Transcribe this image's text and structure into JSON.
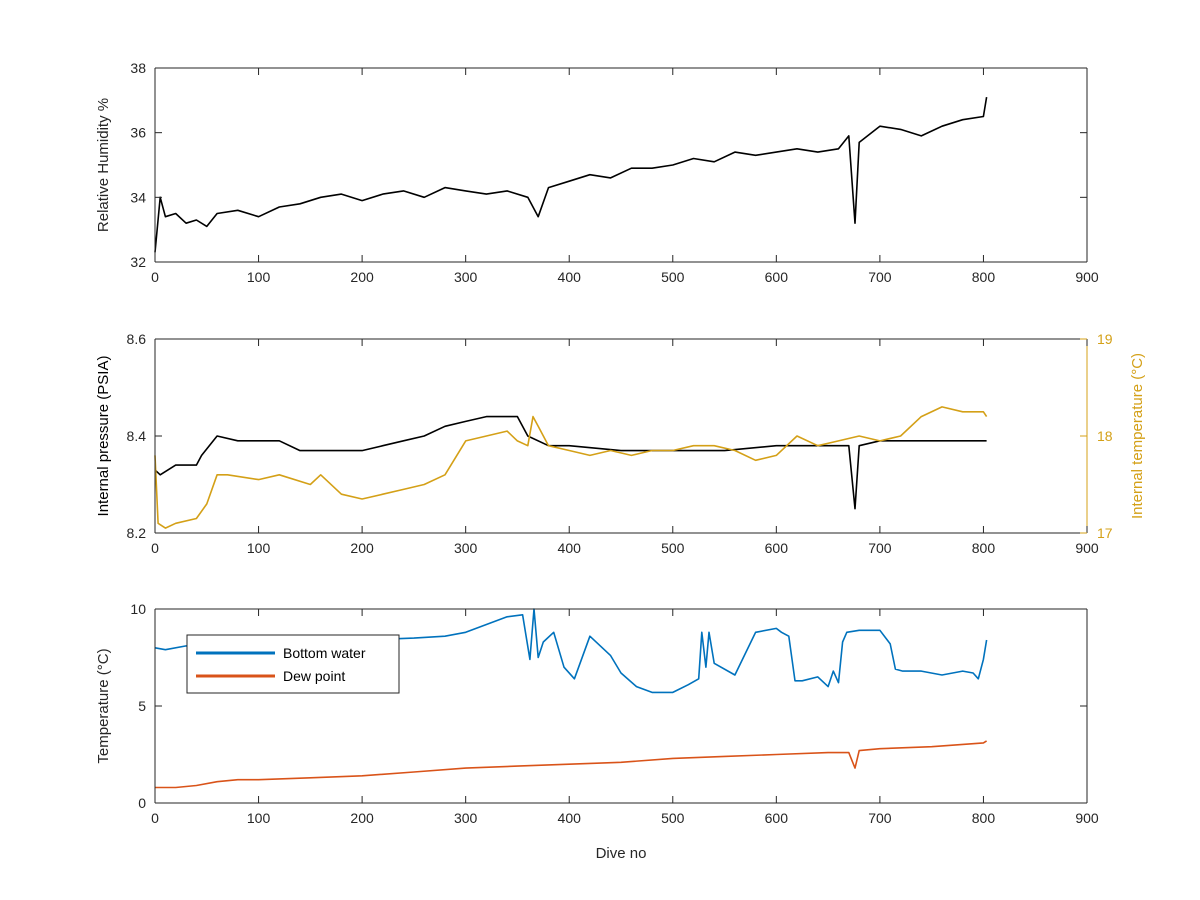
{
  "chart_data": [
    {
      "type": "line",
      "id": "humidity",
      "xlabel": "",
      "ylabel": "Relative Humidity %",
      "xlim": [
        0,
        900
      ],
      "ylim": [
        32,
        38
      ],
      "xticks": [
        0,
        100,
        200,
        300,
        400,
        500,
        600,
        700,
        800,
        900
      ],
      "yticks": [
        32,
        34,
        36,
        38
      ],
      "grid": false,
      "series": [
        {
          "color": "#000000",
          "x": [
            0,
            5,
            10,
            20,
            30,
            40,
            50,
            60,
            80,
            100,
            120,
            140,
            160,
            180,
            200,
            220,
            240,
            260,
            280,
            300,
            320,
            340,
            360,
            370,
            380,
            400,
            420,
            440,
            460,
            480,
            500,
            520,
            540,
            560,
            580,
            600,
            620,
            640,
            660,
            670,
            676,
            680,
            700,
            720,
            740,
            760,
            780,
            800,
            803
          ],
          "y": [
            32.3,
            34.0,
            33.4,
            33.5,
            33.2,
            33.3,
            33.1,
            33.5,
            33.6,
            33.4,
            33.7,
            33.8,
            34.0,
            34.1,
            33.9,
            34.1,
            34.2,
            34.0,
            34.3,
            34.2,
            34.1,
            34.2,
            34.0,
            33.4,
            34.3,
            34.5,
            34.7,
            34.6,
            34.9,
            34.9,
            35.0,
            35.2,
            35.1,
            35.4,
            35.3,
            35.4,
            35.5,
            35.4,
            35.5,
            35.9,
            33.2,
            35.7,
            36.2,
            36.1,
            35.9,
            36.2,
            36.4,
            36.5,
            37.1
          ]
        }
      ]
    },
    {
      "type": "line",
      "id": "pressure-temperature",
      "xlabel": "",
      "ylabel": "Internal pressure (PSIA)",
      "ylabel_right": "Internal temperature (°C)",
      "xlim": [
        0,
        900
      ],
      "ylim": [
        8.2,
        8.6
      ],
      "ylim_right": [
        17,
        19
      ],
      "xticks": [
        0,
        100,
        200,
        300,
        400,
        500,
        600,
        700,
        800,
        900
      ],
      "yticks": [
        "8.2",
        "8.4",
        "8.6"
      ],
      "yticks_right": [
        17,
        18,
        19
      ],
      "grid": false,
      "series": [
        {
          "axis": "left",
          "color": "#000000",
          "x": [
            0,
            5,
            20,
            40,
            45,
            60,
            80,
            100,
            120,
            140,
            160,
            180,
            200,
            220,
            240,
            260,
            280,
            300,
            320,
            340,
            350,
            360,
            380,
            400,
            450,
            500,
            550,
            600,
            650,
            670,
            676,
            680,
            700,
            750,
            800,
            803
          ],
          "y": [
            8.33,
            8.32,
            8.34,
            8.34,
            8.36,
            8.4,
            8.39,
            8.39,
            8.39,
            8.37,
            8.37,
            8.37,
            8.37,
            8.38,
            8.39,
            8.4,
            8.42,
            8.43,
            8.44,
            8.44,
            8.44,
            8.4,
            8.38,
            8.38,
            8.37,
            8.37,
            8.37,
            8.38,
            8.38,
            8.38,
            8.25,
            8.38,
            8.39,
            8.39,
            8.39,
            8.39
          ]
        },
        {
          "axis": "right",
          "color": "#D4A017",
          "x": [
            0,
            3,
            10,
            20,
            40,
            50,
            60,
            70,
            100,
            120,
            150,
            160,
            180,
            200,
            220,
            240,
            260,
            280,
            300,
            320,
            340,
            350,
            360,
            365,
            370,
            380,
            400,
            420,
            440,
            460,
            480,
            500,
            520,
            540,
            560,
            580,
            600,
            620,
            640,
            660,
            680,
            700,
            720,
            740,
            760,
            780,
            800,
            803
          ],
          "y": [
            17.8,
            17.1,
            17.05,
            17.1,
            17.15,
            17.3,
            17.6,
            17.6,
            17.55,
            17.6,
            17.5,
            17.6,
            17.4,
            17.35,
            17.4,
            17.45,
            17.5,
            17.6,
            17.95,
            18.0,
            18.05,
            17.95,
            17.9,
            18.2,
            18.1,
            17.9,
            17.85,
            17.8,
            17.85,
            17.8,
            17.85,
            17.85,
            17.9,
            17.9,
            17.85,
            17.75,
            17.8,
            18.0,
            17.9,
            17.95,
            18.0,
            17.95,
            18.0,
            18.2,
            18.3,
            18.25,
            18.25,
            18.2
          ]
        }
      ]
    },
    {
      "type": "line",
      "id": "temperature",
      "xlabel": "Dive no",
      "ylabel": "Temperature (°C)",
      "xlim": [
        0,
        900
      ],
      "ylim": [
        0,
        10
      ],
      "xticks": [
        0,
        100,
        200,
        300,
        400,
        500,
        600,
        700,
        800,
        900
      ],
      "yticks": [
        0,
        5,
        10
      ],
      "grid": false,
      "legend": "top-left",
      "series": [
        {
          "name": "Bottom water",
          "color": "#0072BD",
          "x": [
            0,
            10,
            30,
            50,
            60,
            80,
            100,
            150,
            200,
            250,
            280,
            300,
            320,
            340,
            355,
            362,
            366,
            370,
            375,
            385,
            395,
            405,
            420,
            440,
            450,
            465,
            480,
            500,
            515,
            525,
            528,
            532,
            535,
            540,
            560,
            580,
            600,
            605,
            612,
            618,
            625,
            640,
            650,
            655,
            660,
            664,
            668,
            680,
            700,
            710,
            715,
            722,
            740,
            760,
            780,
            790,
            795,
            800,
            803
          ],
          "y": [
            8.0,
            7.9,
            8.1,
            8.1,
            8.6,
            8.6,
            8.5,
            8.4,
            8.4,
            8.5,
            8.6,
            8.8,
            9.2,
            9.6,
            9.7,
            7.4,
            10.0,
            7.5,
            8.3,
            8.8,
            7.0,
            6.4,
            8.6,
            7.6,
            6.7,
            6.0,
            5.7,
            5.7,
            6.1,
            6.4,
            8.8,
            7.0,
            8.8,
            7.2,
            6.6,
            8.8,
            9.0,
            8.8,
            8.6,
            6.3,
            6.3,
            6.5,
            6.0,
            6.8,
            6.2,
            8.3,
            8.8,
            8.9,
            8.9,
            8.2,
            6.9,
            6.8,
            6.8,
            6.6,
            6.8,
            6.7,
            6.4,
            7.4,
            8.4
          ]
        },
        {
          "name": "Dew point",
          "color": "#D95319",
          "x": [
            0,
            20,
            40,
            60,
            80,
            100,
            150,
            200,
            250,
            300,
            350,
            400,
            450,
            500,
            550,
            600,
            650,
            670,
            676,
            680,
            700,
            750,
            800,
            803
          ],
          "y": [
            0.8,
            0.8,
            0.9,
            1.1,
            1.2,
            1.2,
            1.3,
            1.4,
            1.6,
            1.8,
            1.9,
            2.0,
            2.1,
            2.3,
            2.4,
            2.5,
            2.6,
            2.6,
            1.8,
            2.7,
            2.8,
            2.9,
            3.1,
            3.2
          ]
        }
      ]
    }
  ]
}
